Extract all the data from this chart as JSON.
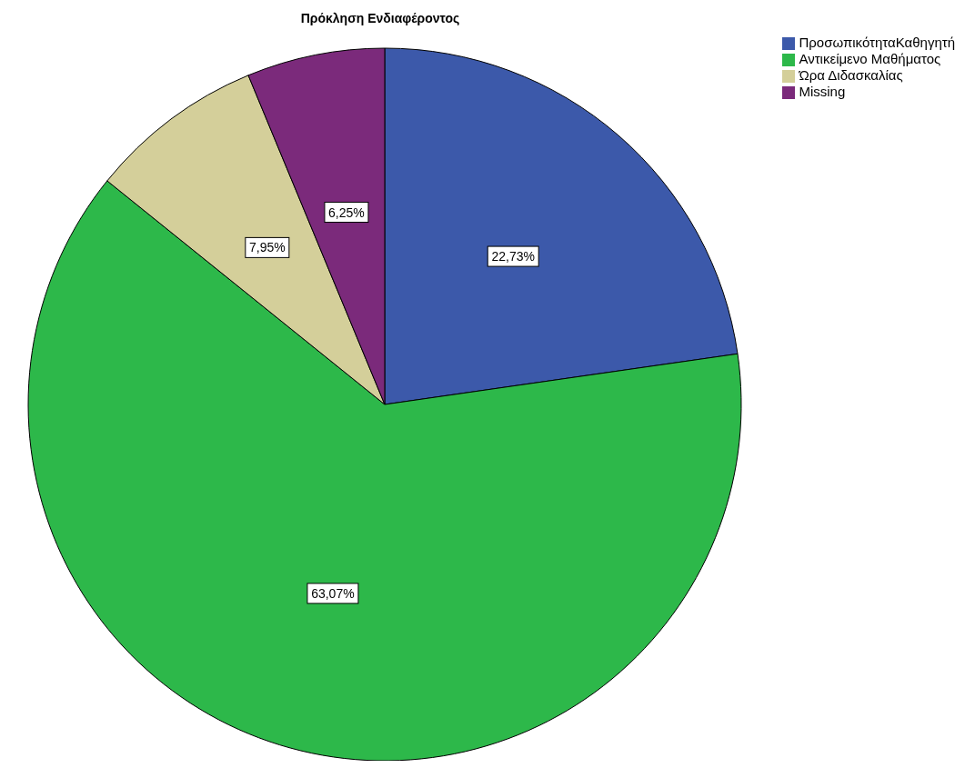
{
  "chart_data": {
    "type": "pie",
    "title": "Πρόκληση Ενδιαφέροντος",
    "categories": [
      "ΠροσωπικότηταΚαθηγητή",
      "Αντικείμενο Μαθήματος",
      "Ώρα Διδασκαλίας",
      "Missing"
    ],
    "values": [
      22.73,
      63.07,
      7.95,
      6.25
    ],
    "colors": [
      "#3c59aa",
      "#2db84a",
      "#d4cf9a",
      "#7b2a7b"
    ],
    "value_labels": [
      "22,73%",
      "63,07%",
      "7,95%",
      "6,25%"
    ],
    "legend": "top right"
  }
}
